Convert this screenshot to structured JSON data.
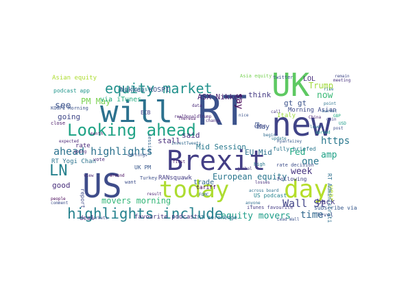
{
  "word_cloud": {
    "background": "#ffffff",
    "words": [
      {
        "text": "RT",
        "color": "#3b528b"
      },
      {
        "text": "Brexit",
        "color": "#433e85"
      },
      {
        "text": "US",
        "color": "#3e4c8a"
      },
      {
        "text": "will",
        "color": "#2c718e"
      },
      {
        "text": "UK",
        "color": "#5ec962"
      },
      {
        "text": "new",
        "color": "#404387"
      },
      {
        "text": "today",
        "color": "#addc30"
      },
      {
        "text": "day",
        "color": "#b5de2b"
      },
      {
        "text": "Looking ahead",
        "color": "#20a386"
      },
      {
        "text": "equity market",
        "color": "#21918c"
      },
      {
        "text": "highlights include",
        "color": "#26828e"
      },
      {
        "text": "ahead highlights",
        "color": "#2c728e"
      },
      {
        "text": "LN",
        "color": "#26828e"
      },
      {
        "text": "Wall St",
        "color": "#414487"
      },
      {
        "text": "movers morning",
        "color": "#35b779"
      },
      {
        "text": "equity movers",
        "color": "#1f9e89"
      },
      {
        "text": "time",
        "color": "#31688e"
      },
      {
        "text": "PM May",
        "color": "#7ad151"
      },
      {
        "text": "see",
        "color": "#3b528b"
      },
      {
        "text": "https",
        "color": "#2a788e"
      },
      {
        "text": "amp",
        "color": "#1fa187"
      },
      {
        "text": "gt gt",
        "color": "#3b528b"
      },
      {
        "text": "now",
        "color": "#3aba76"
      },
      {
        "text": "Fed",
        "color": "#22a884"
      },
      {
        "text": "one",
        "color": "#2a778e"
      },
      {
        "text": "week",
        "color": "#463480"
      },
      {
        "text": "back",
        "color": "#443983"
      },
      {
        "text": "say",
        "color": "#440154"
      },
      {
        "text": "Trump",
        "color": "#a0da39"
      },
      {
        "text": "LOL",
        "color": "#472d7b"
      },
      {
        "text": "European equity",
        "color": "#2a768e"
      },
      {
        "text": "EU Mid",
        "color": "#2c718e"
      },
      {
        "text": "Mid Session",
        "color": "#29798e"
      },
      {
        "text": "Nikkei KOSPI",
        "color": "#3b528b"
      },
      {
        "text": "ASX Nikkei",
        "color": "#481f70"
      },
      {
        "text": "think",
        "color": "#443a83"
      },
      {
        "text": "said",
        "color": "#46307e"
      },
      {
        "text": "May",
        "color": "#3d4e8a"
      },
      {
        "text": "good",
        "color": "#472d7b"
      },
      {
        "text": "going",
        "color": "#3f4788"
      },
      {
        "text": "stall",
        "color": "#472c7a"
      },
      {
        "text": "RT Yogi Chan",
        "color": "#2c738e"
      },
      {
        "text": "Asian equity",
        "color": "#addc30"
      },
      {
        "text": "app https",
        "color": "#26828e"
      },
      {
        "text": "via iTunes",
        "color": "#27ad81"
      },
      {
        "text": "favourite podcast",
        "color": "#46327e"
      },
      {
        "text": "RT zerohedge",
        "color": "#2e6e8e"
      },
      {
        "text": "deal",
        "color": "#472a7a"
      },
      {
        "text": "rate",
        "color": "#482878"
      },
      {
        "text": "trade",
        "color": "#31688e"
      },
      {
        "text": "US podcast",
        "color": "#25838e"
      },
      {
        "text": "iTunes favourite",
        "color": "#443b84"
      },
      {
        "text": "fully briefed",
        "color": "#2a768e"
      },
      {
        "text": "Morning Asian",
        "color": "#3e4a89"
      },
      {
        "text": "subscribe via",
        "color": "#38598c"
      },
      {
        "text": "level",
        "color": "#3b528b"
      },
      {
        "text": "year",
        "color": "#b8de29"
      },
      {
        "text": "RANsquawk",
        "color": "#433d84"
      },
      {
        "text": "ECB",
        "color": "#433e85"
      },
      {
        "text": "Italy",
        "color": "#9bd93c"
      },
      {
        "text": "Following",
        "color": "#414487"
      },
      {
        "text": "report",
        "color": "#3e4989"
      },
      {
        "text": "UK PM",
        "color": "#38588c"
      },
      {
        "text": "podcast app",
        "color": "#1f958b"
      },
      {
        "text": "KOSPI Morning",
        "color": "#3b528b"
      },
      {
        "text": "RT Administrati",
        "color": "#2e6f8e"
      },
      {
        "text": "rate decision",
        "color": "#3d4d8a"
      },
      {
        "text": "tariff",
        "color": "#440256"
      },
      {
        "text": "close",
        "color": "#471365"
      },
      {
        "text": "Turkey",
        "color": "#3c4f8a"
      },
      {
        "text": "vote",
        "color": "#482576"
      },
      {
        "text": "want",
        "color": "#3d4e8a"
      },
      {
        "text": "high",
        "color": "#2a788e"
      },
      {
        "text": "session",
        "color": "#32648e"
      },
      {
        "text": "remain",
        "color": "#3f4889"
      },
      {
        "text": "meeting",
        "color": "#46307e"
      },
      {
        "text": "gain",
        "color": "#3f4788"
      },
      {
        "text": "point",
        "color": "#2c728e"
      },
      {
        "text": "lower",
        "color": "#2e6e8e"
      },
      {
        "text": "GBP",
        "color": "#25ab82"
      },
      {
        "text": "USD",
        "color": "#1e9c89"
      },
      {
        "text": "post",
        "color": "#3d4e8a"
      },
      {
        "text": "China",
        "color": "#481d6f"
      },
      {
        "text": "Lead Wall",
        "color": "#3b528b"
      },
      {
        "text": "across board",
        "color": "#2d708e"
      },
      {
        "text": "market",
        "color": "#33638d"
      },
      {
        "text": "expected",
        "color": "#482475"
      },
      {
        "text": "people",
        "color": "#440154"
      },
      {
        "text": "earnings",
        "color": "#3b528b"
      },
      {
        "text": "month",
        "color": "#481a6c"
      },
      {
        "text": "comment",
        "color": "#3d4e8a"
      },
      {
        "text": "around",
        "color": "#470d60"
      },
      {
        "text": "Theresa",
        "color": "#481769"
      },
      {
        "text": "realDonaldTrump",
        "color": "#482173"
      },
      {
        "text": "markets",
        "color": "#3e4989"
      },
      {
        "text": "begin",
        "color": "#2f6b8e"
      },
      {
        "text": "right",
        "color": "#3f4788"
      },
      {
        "text": "FOMC",
        "color": "#33638d"
      },
      {
        "text": "InvestTweets",
        "color": "#31688e"
      },
      {
        "text": "change",
        "color": "#482878"
      },
      {
        "text": "nice",
        "color": "#3b528b"
      },
      {
        "text": "anyone",
        "color": "#2f6c8e"
      },
      {
        "text": "losses",
        "color": "#472e7c"
      },
      {
        "text": "call",
        "color": "#46337f"
      },
      {
        "text": "Asia equity",
        "color": "#77d153"
      },
      {
        "text": "twitter",
        "color": "#3b528b"
      },
      {
        "text": "rise",
        "color": "#2d718e"
      },
      {
        "text": "data",
        "color": "#482878"
      },
      {
        "text": "update",
        "color": "#2a788e"
      },
      {
        "text": "Ryanfaizey",
        "color": "#38598c"
      },
      {
        "text": "going",
        "color": "#482071"
      },
      {
        "text": "spread",
        "color": "#1f968b"
      },
      {
        "text": "result",
        "color": "#481f70"
      },
      {
        "text": "EU",
        "color": "#3b528b"
      },
      {
        "text": "view",
        "color": "#482475"
      },
      {
        "text": "global",
        "color": "#453781"
      },
      {
        "text": "first",
        "color": "#471063"
      }
    ]
  }
}
